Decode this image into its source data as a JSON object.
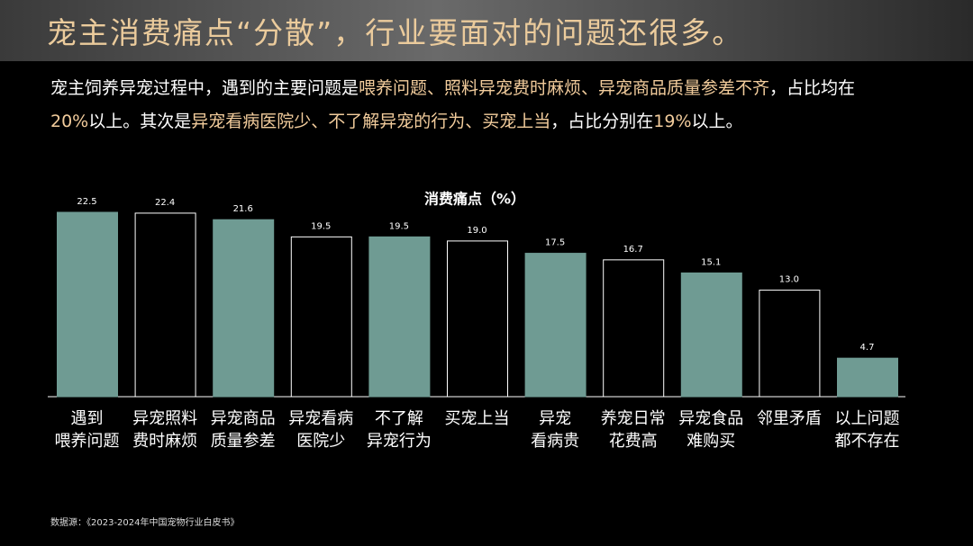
{
  "header": {
    "title": "宠主消费痛点“分散”，行业要面对的问题还很多。"
  },
  "description": {
    "lines": [
      [
        {
          "text": "宠主饲养异宠过程中，遇到的主要问题是",
          "color": "#ffffff"
        },
        {
          "text": "喂养问题、照料异宠费时麻烦、异宠商品质量参差不齐",
          "color": "#f2cc9c"
        },
        {
          "text": "，占比均在",
          "color": "#ffffff"
        }
      ],
      [
        {
          "text": "20%",
          "color": "#f2cc9c"
        },
        {
          "text": "以上。其次是",
          "color": "#ffffff"
        },
        {
          "text": "异宠看病医院少、不了解异宠的行为、买宠上当",
          "color": "#f2cc9c"
        },
        {
          "text": "，占比分别在",
          "color": "#ffffff"
        },
        {
          "text": "19%",
          "color": "#f2cc9c"
        },
        {
          "text": "以上。",
          "color": "#ffffff"
        }
      ]
    ]
  },
  "chart_data": {
    "type": "bar",
    "title": "消费痛点（%）",
    "categories": [
      [
        "遇到",
        "喂养问题"
      ],
      [
        "异宠照料",
        "费时麻烦"
      ],
      [
        "异宠商品",
        "质量参差"
      ],
      [
        "异宠看病",
        "医院少"
      ],
      [
        "不了解",
        "异宠行为"
      ],
      [
        "买宠上当"
      ],
      [
        "异宠",
        "看病贵"
      ],
      [
        "养宠日常",
        "花费高"
      ],
      [
        "异宠食品",
        "难购买"
      ],
      [
        "邻里矛盾"
      ],
      [
        "以上问题",
        "都不存在"
      ]
    ],
    "values": [
      22.5,
      22.4,
      21.6,
      19.5,
      19.5,
      19.0,
      17.5,
      16.7,
      15.1,
      13.0,
      4.7
    ],
    "value_labels": [
      "22.5",
      "22.4",
      "21.6",
      "19.5",
      "19.5",
      "19.0",
      "17.5",
      "16.7",
      "15.1",
      "13.0",
      "4.7"
    ],
    "colors": [
      "#6f9b93",
      "#000000",
      "#6f9b93",
      "#000000",
      "#6f9b93",
      "#000000",
      "#6f9b93",
      "#000000",
      "#6f9b93",
      "#000000",
      "#6f9b93"
    ],
    "edgecolors": [
      "#6f9b93",
      "#ffffff",
      "#6f9b93",
      "#ffffff",
      "#6f9b93",
      "#ffffff",
      "#6f9b93",
      "#ffffff",
      "#6f9b93",
      "#ffffff",
      "#6f9b93"
    ]
  },
  "source": "数据源：《2023-2024年中国宠物行业白皮书》"
}
